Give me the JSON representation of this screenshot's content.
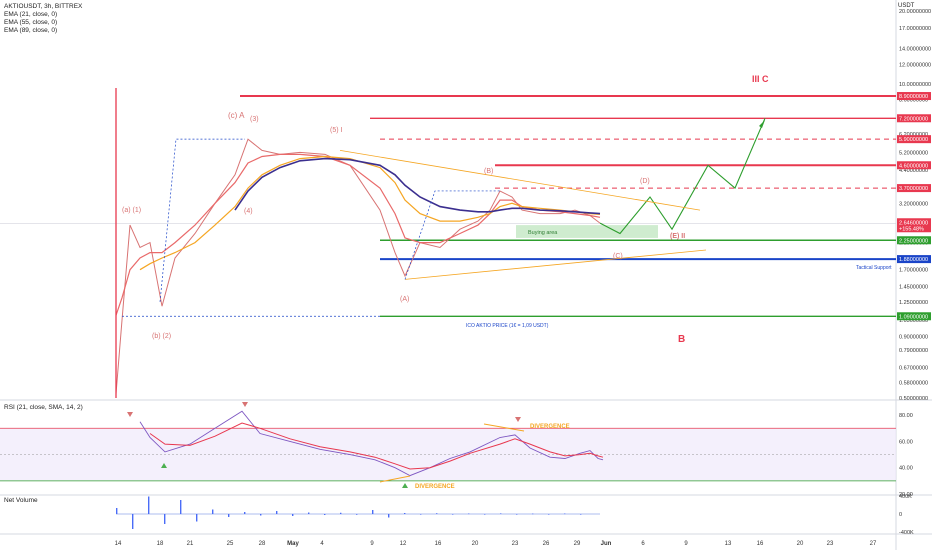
{
  "header": {
    "symbol_line": "AKTIOUSDT, 3h, BITTREX",
    "ema_lines": [
      "EMA (21, close, 0)",
      "EMA (55, close, 0)",
      "EMA (89, close, 0)"
    ],
    "currency": "USDT"
  },
  "rsi_label": "RSI (21, close, SMA, 14, 2)",
  "volume_label": "Net Volume",
  "colors": {
    "red": "#e8384f",
    "green": "#2e9e2e",
    "blue": "#1a44c8",
    "orange": "#f5a623",
    "navy": "#3b2f8f",
    "purple_rsi": "#7e57c2",
    "price_line": "#d87373"
  },
  "chart_data": [
    {
      "type": "line",
      "title": "AKTIOUSDT, 3h, BITTREX",
      "scale": "log",
      "ylim": [
        0.5,
        21
      ],
      "y_ticks": [
        "20.00000000",
        "17.00000000",
        "14.00000000",
        "12.00000000",
        "10.00000000",
        "8.60000000",
        "7.20000000",
        "6.20000000",
        "5.20000000",
        "4.40000000",
        "3.70000000",
        "3.20000000",
        "2.70000000",
        "2.20000000",
        "1.90000000",
        "1.70000000",
        "1.45000000",
        "1.25000000",
        "1.05000000",
        "0.90000000",
        "0.79000000",
        "0.67000000",
        "0.58000000",
        "0.50000000"
      ],
      "x_ticks": [
        "14",
        "18",
        "21",
        "25",
        "28",
        "May",
        "4",
        "9",
        "12",
        "16",
        "20",
        "23",
        "26",
        "29",
        "Jun",
        "6",
        "9",
        "13",
        "16",
        "20",
        "23",
        "27"
      ],
      "levels": [
        {
          "label": "8.90000000",
          "value": 8.9,
          "color": "#e8384f",
          "style": "solid"
        },
        {
          "label": "7.20000000",
          "value": 7.2,
          "color": "#e8384f",
          "style": "solid"
        },
        {
          "label": "5.90000000",
          "value": 5.9,
          "color": "#e8384f",
          "style": "dashed"
        },
        {
          "label": "4.60000000",
          "value": 4.6,
          "color": "#e8384f",
          "style": "solid"
        },
        {
          "label": "3.70000000",
          "value": 3.7,
          "color": "#e8384f",
          "style": "dashed"
        },
        {
          "label": "2.25000000",
          "value": 2.25,
          "color": "#2e9e2e",
          "style": "solid"
        },
        {
          "label": "1.88000000",
          "value": 1.88,
          "color": "#1a44c8",
          "style": "solid"
        },
        {
          "label": "1.09000000",
          "value": 1.09,
          "color": "#2e9e2e",
          "style": "solid"
        }
      ],
      "current_price": {
        "label": "2.64600000",
        "change": "+155.48%",
        "value": 2.646
      },
      "annotations": [
        "(a) (1)",
        "(b) (2)",
        "(c) A",
        "(3)",
        "(4)",
        "(5) I",
        "(A)",
        "(B)",
        "(C)",
        "(D)",
        "(E) II",
        "III  C",
        "B",
        "Buying area",
        "Tactical Support",
        "ICO AKTIO PRICE (1€ = 1,09 USDT)"
      ],
      "series": [
        {
          "values": [
            0.52,
            1.05,
            2.6,
            2.1,
            2.2,
            1.2,
            1.9,
            2.4,
            3.2,
            4.2,
            5.9,
            5.3,
            5.1,
            5.2,
            5.1,
            4.6,
            3.0,
            2.0,
            1.6,
            2.2,
            2.1,
            2.5,
            2.7,
            3.0,
            3.6,
            3.4,
            3.0,
            2.9,
            2.9,
            3.0,
            2.85,
            2.65
          ]
        },
        {
          "name": "EMA (21, close, 0)",
          "values": [
            1.1,
            1.3,
            1.7,
            1.9,
            2.0,
            2.0,
            2.2,
            2.6,
            3.2,
            3.9,
            4.7,
            5.0,
            5.1,
            5.1,
            5.0,
            4.6,
            3.7,
            2.9,
            2.3,
            2.2,
            2.2,
            2.4,
            2.6,
            2.9,
            3.3,
            3.3,
            3.1,
            3.0,
            2.95,
            2.9,
            2.85,
            2.8
          ]
        },
        {
          "name": "EMA (55, close, 0)",
          "values": [
            null,
            null,
            null,
            1.7,
            1.8,
            1.9,
            2.0,
            2.2,
            2.6,
            3.1,
            3.7,
            4.2,
            4.6,
            4.9,
            5.0,
            4.9,
            4.5,
            3.9,
            3.3,
            2.9,
            2.7,
            2.7,
            2.8,
            2.9,
            3.1,
            3.2,
            3.1,
            3.05,
            3.0,
            2.95,
            2.9,
            2.88
          ]
        },
        {
          "name": "EMA (89, close, 0)",
          "values": [
            null,
            null,
            null,
            null,
            null,
            null,
            null,
            null,
            null,
            3.0,
            3.6,
            4.1,
            4.5,
            4.8,
            4.9,
            4.85,
            4.6,
            4.2,
            3.8,
            3.4,
            3.1,
            3.0,
            2.95,
            2.95,
            3.0,
            3.05,
            3.05,
            3.0,
            2.98,
            2.95,
            2.92,
            2.9
          ]
        }
      ],
      "projection": {
        "values": [
          2.65,
          2.4,
          3.4,
          2.5,
          4.6,
          3.7,
          7.2
        ]
      }
    },
    {
      "type": "line",
      "title": "RSI (21, close, SMA, 14, 2)",
      "ylim": [
        20,
        90
      ],
      "y_ticks": [
        "80.00",
        "60.00",
        "40.00",
        "20.00"
      ],
      "bands": [
        70,
        30
      ],
      "annotations": [
        "DIVERGENCE",
        "DIVERGENCE"
      ],
      "series": [
        {
          "name": "RSI",
          "values": [
            75,
            63,
            52,
            58,
            70,
            83,
            66,
            60,
            54,
            50,
            46,
            40,
            34,
            40,
            47,
            52,
            63,
            65,
            55,
            48,
            47,
            51,
            53,
            47,
            46
          ]
        },
        {
          "name": "SMA",
          "values": [
            null,
            66,
            58,
            57,
            64,
            74,
            70,
            62,
            56,
            52,
            48,
            43,
            39,
            40,
            45,
            51,
            58,
            62,
            58,
            52,
            49,
            50,
            51,
            49,
            48
          ]
        }
      ]
    },
    {
      "type": "bar",
      "title": "Net Volume",
      "y_ticks": [
        "400K",
        "0",
        "-400K"
      ],
      "values": [
        120,
        -300,
        350,
        -200,
        280,
        -150,
        90,
        -60,
        40,
        -30,
        60,
        -40,
        30,
        -20,
        25,
        -15,
        80,
        -70,
        20,
        -10,
        15,
        -12,
        10,
        -8,
        12,
        -10,
        8,
        -6,
        10,
        -5
      ]
    }
  ]
}
